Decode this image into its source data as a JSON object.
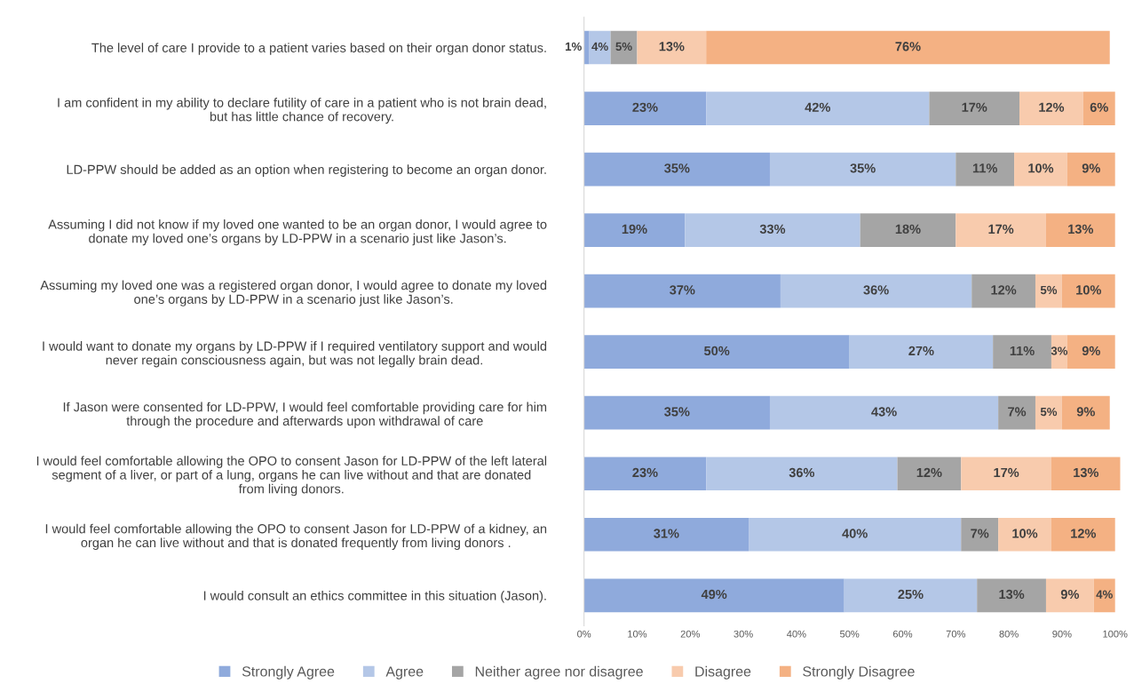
{
  "chart_data": {
    "type": "bar",
    "orientation": "horizontal",
    "stacked": true,
    "data_labels": true,
    "grid": false,
    "legend": "bottom",
    "categories": [
      "The level of care I provide to a patient varies based on their organ donor status.",
      "I am confident in my ability to declare futility of care in a patient who is not brain dead,\nbut has little chance of recovery.",
      "LD-PPW should be added as an option when registering to become an organ donor.",
      "Assuming I did not know if my loved one wanted to be an organ donor, I would agree to\ndonate my loved one’s organs by LD-PPW in a scenario just like Jason’s.",
      "Assuming my loved one was a registered organ donor, I would agree to donate my loved\none’s organs by LD-PPW in a scenario just like Jason’s.",
      "I would want to donate my organs by LD-PPW if I required ventilatory support and would\nnever regain consciousness again, but was not legally brain dead.",
      "If Jason were consented for LD-PPW, I would feel comfortable providing care for him\nthrough the procedure and afterwards upon withdrawal of care",
      "I would feel comfortable allowing the OPO to consent Jason for LD-PPW of the left lateral\nsegment of a liver, or part of a lung, organs he can live without and that are donated\nfrom living donors.",
      "I would feel comfortable allowing the OPO to consent Jason for LD-PPW of a kidney, an\norgan he can live without and that is donated frequently from living donors .",
      "I would consult an ethics committee in this situation (Jason)."
    ],
    "series": [
      {
        "name": "Strongly Agree",
        "color": "#8faadc",
        "values": [
          1,
          23,
          35,
          19,
          37,
          50,
          35,
          23,
          31,
          49
        ],
        "value_labels": [
          "1%",
          "23%",
          "35%",
          "19%",
          "37%",
          "50%",
          "35%",
          "23%",
          "31%",
          "49%"
        ]
      },
      {
        "name": "Agree",
        "color": "#b4c7e7",
        "values": [
          4,
          42,
          35,
          33,
          36,
          27,
          43,
          36,
          40,
          25
        ],
        "value_labels": [
          "4%",
          "42%",
          "35%",
          "33%",
          "36%",
          "27%",
          "43%",
          "36%",
          "40%",
          "25%"
        ]
      },
      {
        "name": "Neither agree nor disagree",
        "color": "#a5a5a5",
        "values": [
          5,
          17,
          11,
          18,
          12,
          11,
          7,
          12,
          7,
          13
        ],
        "value_labels": [
          "5%",
          "17%",
          "11%",
          "18%",
          "12%",
          "11%",
          "7%",
          "12%",
          "7%",
          "13%"
        ]
      },
      {
        "name": "Disagree",
        "color": "#f8cbad",
        "values": [
          13,
          12,
          10,
          17,
          5,
          3,
          5,
          17,
          10,
          9
        ],
        "value_labels": [
          "13%",
          "12%",
          "10%",
          "17%",
          "5%",
          "3%",
          "5%",
          "17%",
          "10%",
          "9%"
        ]
      },
      {
        "name": "Strongly Disagree",
        "color": "#f4b183",
        "values": [
          76,
          6,
          9,
          13,
          10,
          9,
          9,
          13,
          12,
          4
        ],
        "value_labels": [
          "76%",
          "6%",
          "9%",
          "13%",
          "10%",
          "9%",
          "9%",
          "13%",
          "12%",
          "4%"
        ]
      }
    ],
    "xlim": [
      0,
      101
    ],
    "xticks": [
      {
        "value": 0,
        "label": "0%"
      },
      {
        "value": 10,
        "label": "10%"
      },
      {
        "value": 20,
        "label": "20%"
      },
      {
        "value": 30,
        "label": "30%"
      },
      {
        "value": 40,
        "label": "40%"
      },
      {
        "value": 50,
        "label": "50%"
      },
      {
        "value": 60,
        "label": "60%"
      },
      {
        "value": 70,
        "label": "70%"
      },
      {
        "value": 80,
        "label": "80%"
      },
      {
        "value": 90,
        "label": "90%"
      },
      {
        "value": 100,
        "label": "100%"
      }
    ]
  }
}
